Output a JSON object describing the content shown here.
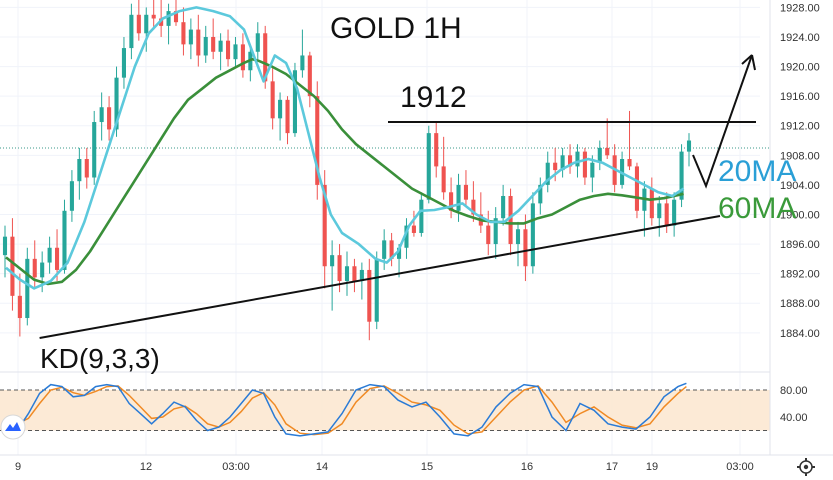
{
  "chart_data": {
    "type": "candlestick",
    "title": "GOLD 1H",
    "price_axis": {
      "ticks": [
        "1928.00",
        "1924.00",
        "1920.00",
        "1916.00",
        "1912.00",
        "1908.00",
        "1904.00",
        "1900.00",
        "1896.00",
        "1892.00",
        "1888.00",
        "1884.00"
      ],
      "ylim": [
        1881,
        1929
      ]
    },
    "time_axis": {
      "ticks": [
        "9",
        "12",
        "03:00",
        "14",
        "15",
        "16",
        "17",
        "19",
        "03:00"
      ]
    },
    "resistance": {
      "label": "1912",
      "value": 1912.5
    },
    "support": {
      "from": [
        1.2,
        1883.3
      ],
      "to": [
        25.5,
        1899.8
      ]
    },
    "ma_labels": [
      {
        "text": "20MA",
        "color": "#2a9fd6"
      },
      {
        "text": "60MA",
        "color": "#3a9a3a"
      }
    ],
    "ma20": [
      [
        0,
        1892.8
      ],
      [
        0.5,
        1891.2
      ],
      [
        1.0,
        1890.0
      ],
      [
        1.6,
        1891.0
      ],
      [
        2.2,
        1893.5
      ],
      [
        2.8,
        1899.0
      ],
      [
        3.4,
        1906.0
      ],
      [
        4.0,
        1913.0
      ],
      [
        4.6,
        1920.0
      ],
      [
        5.1,
        1924.5
      ],
      [
        5.6,
        1926.5
      ],
      [
        6.2,
        1927.5
      ],
      [
        6.8,
        1928.0
      ],
      [
        7.4,
        1927.5
      ],
      [
        8.0,
        1926.8
      ],
      [
        8.5,
        1925.0
      ],
      [
        8.8,
        1922.0
      ],
      [
        9.2,
        1918.0
      ],
      [
        9.6,
        1921.5
      ],
      [
        10.0,
        1920.5
      ],
      [
        10.4,
        1917.0
      ],
      [
        10.8,
        1911.0
      ],
      [
        11.2,
        1905.0
      ],
      [
        11.6,
        1900.0
      ],
      [
        12.0,
        1897.5
      ],
      [
        12.6,
        1896.0
      ],
      [
        13.2,
        1894.0
      ],
      [
        13.6,
        1893.5
      ],
      [
        14.0,
        1895.0
      ],
      [
        14.4,
        1898.5
      ],
      [
        14.8,
        1900.5
      ],
      [
        15.3,
        1900.6
      ],
      [
        15.8,
        1901.0
      ],
      [
        16.3,
        1901.5
      ],
      [
        16.8,
        1900.0
      ],
      [
        17.3,
        1899.0
      ],
      [
        17.8,
        1899.0
      ],
      [
        18.3,
        1900.5
      ],
      [
        18.8,
        1902.5
      ],
      [
        19.3,
        1904.5
      ],
      [
        19.8,
        1906.0
      ],
      [
        20.3,
        1907.0
      ],
      [
        20.8,
        1907.5
      ],
      [
        21.3,
        1907.0
      ],
      [
        21.8,
        1906.0
      ],
      [
        22.3,
        1905.0
      ],
      [
        22.8,
        1904.0
      ],
      [
        23.3,
        1903.0
      ],
      [
        23.8,
        1902.5
      ],
      [
        24.2,
        1903.5
      ]
    ],
    "ma60": [
      [
        0,
        1894.2
      ],
      [
        0.5,
        1892.7
      ],
      [
        1.0,
        1891.2
      ],
      [
        1.5,
        1890.6
      ],
      [
        2.0,
        1890.9
      ],
      [
        2.5,
        1892.5
      ],
      [
        3.0,
        1895.0
      ],
      [
        3.5,
        1898.0
      ],
      [
        4.0,
        1901.0
      ],
      [
        4.5,
        1904.0
      ],
      [
        5.0,
        1907.0
      ],
      [
        5.5,
        1910.0
      ],
      [
        6.0,
        1913.0
      ],
      [
        6.5,
        1915.5
      ],
      [
        7.0,
        1917.0
      ],
      [
        7.5,
        1918.5
      ],
      [
        8.0,
        1919.5
      ],
      [
        8.5,
        1920.5
      ],
      [
        8.8,
        1921.0
      ],
      [
        9.0,
        1920.8
      ],
      [
        9.5,
        1920.0
      ],
      [
        10.0,
        1919.0
      ],
      [
        10.5,
        1917.5
      ],
      [
        11.0,
        1916.0
      ],
      [
        11.5,
        1914.0
      ],
      [
        12.0,
        1911.5
      ],
      [
        12.5,
        1909.5
      ],
      [
        13.0,
        1908.0
      ],
      [
        13.5,
        1906.5
      ],
      [
        14.0,
        1905.0
      ],
      [
        14.5,
        1903.5
      ],
      [
        15.0,
        1902.5
      ],
      [
        15.5,
        1901.5
      ],
      [
        16.0,
        1900.5
      ],
      [
        16.5,
        1899.8
      ],
      [
        17.0,
        1899.2
      ],
      [
        17.5,
        1899.0
      ],
      [
        18.0,
        1898.8
      ],
      [
        18.5,
        1898.8
      ],
      [
        19.0,
        1899.5
      ],
      [
        19.5,
        1900.0
      ],
      [
        20.0,
        1901.0
      ],
      [
        20.5,
        1902.0
      ],
      [
        21.0,
        1902.5
      ],
      [
        21.5,
        1902.8
      ],
      [
        22.0,
        1902.6
      ],
      [
        22.5,
        1902.3
      ],
      [
        23.0,
        1902.0
      ],
      [
        23.5,
        1902.2
      ],
      [
        24.2,
        1902.8
      ]
    ],
    "kd_panel": {
      "label": "KD(9,3,3)",
      "ticks": [
        "80.00",
        "40.00"
      ],
      "levels": [
        80,
        20
      ],
      "k": [
        [
          0,
          35
        ],
        [
          0.4,
          20
        ],
        [
          0.8,
          45
        ],
        [
          1.2,
          75
        ],
        [
          1.6,
          88
        ],
        [
          2.0,
          85
        ],
        [
          2.4,
          70
        ],
        [
          2.8,
          72
        ],
        [
          3.2,
          85
        ],
        [
          3.6,
          88
        ],
        [
          4.0,
          85
        ],
        [
          4.4,
          60
        ],
        [
          4.8,
          45
        ],
        [
          5.2,
          30
        ],
        [
          5.6,
          45
        ],
        [
          6.0,
          62
        ],
        [
          6.4,
          55
        ],
        [
          6.8,
          35
        ],
        [
          7.2,
          20
        ],
        [
          7.6,
          25
        ],
        [
          8.0,
          40
        ],
        [
          8.4,
          60
        ],
        [
          8.8,
          80
        ],
        [
          9.2,
          75
        ],
        [
          9.6,
          40
        ],
        [
          10.0,
          15
        ],
        [
          10.5,
          12
        ],
        [
          11.0,
          15
        ],
        [
          11.5,
          18
        ],
        [
          12.0,
          45
        ],
        [
          12.5,
          80
        ],
        [
          13.0,
          88
        ],
        [
          13.5,
          85
        ],
        [
          14.0,
          65
        ],
        [
          14.5,
          55
        ],
        [
          15.0,
          62
        ],
        [
          15.5,
          40
        ],
        [
          16.0,
          15
        ],
        [
          16.5,
          12
        ],
        [
          17.0,
          25
        ],
        [
          17.5,
          55
        ],
        [
          18.0,
          75
        ],
        [
          18.5,
          88
        ],
        [
          19.0,
          85
        ],
        [
          19.5,
          40
        ],
        [
          20.0,
          20
        ],
        [
          20.5,
          60
        ],
        [
          21.0,
          50
        ],
        [
          21.5,
          30
        ],
        [
          22.0,
          25
        ],
        [
          22.5,
          22
        ],
        [
          23.0,
          40
        ],
        [
          23.5,
          70
        ],
        [
          24.0,
          85
        ],
        [
          24.3,
          90
        ]
      ],
      "d": [
        [
          0,
          40
        ],
        [
          0.4,
          30
        ],
        [
          0.8,
          38
        ],
        [
          1.2,
          60
        ],
        [
          1.6,
          80
        ],
        [
          2.0,
          84
        ],
        [
          2.4,
          76
        ],
        [
          2.8,
          72
        ],
        [
          3.2,
          78
        ],
        [
          3.6,
          85
        ],
        [
          4.0,
          86
        ],
        [
          4.4,
          72
        ],
        [
          4.8,
          55
        ],
        [
          5.2,
          38
        ],
        [
          5.6,
          40
        ],
        [
          6.0,
          52
        ],
        [
          6.4,
          56
        ],
        [
          6.8,
          45
        ],
        [
          7.2,
          30
        ],
        [
          7.6,
          25
        ],
        [
          8.0,
          32
        ],
        [
          8.4,
          48
        ],
        [
          8.8,
          68
        ],
        [
          9.2,
          76
        ],
        [
          9.6,
          58
        ],
        [
          10.0,
          30
        ],
        [
          10.5,
          16
        ],
        [
          11.0,
          14
        ],
        [
          11.5,
          16
        ],
        [
          12.0,
          30
        ],
        [
          12.5,
          62
        ],
        [
          13.0,
          82
        ],
        [
          13.5,
          86
        ],
        [
          14.0,
          75
        ],
        [
          14.5,
          62
        ],
        [
          15.0,
          58
        ],
        [
          15.5,
          50
        ],
        [
          16.0,
          28
        ],
        [
          16.5,
          15
        ],
        [
          17.0,
          18
        ],
        [
          17.5,
          40
        ],
        [
          18.0,
          62
        ],
        [
          18.5,
          80
        ],
        [
          19.0,
          86
        ],
        [
          19.5,
          62
        ],
        [
          20.0,
          32
        ],
        [
          20.5,
          45
        ],
        [
          21.0,
          55
        ],
        [
          21.5,
          40
        ],
        [
          22.0,
          28
        ],
        [
          22.5,
          24
        ],
        [
          23.0,
          30
        ],
        [
          23.5,
          55
        ],
        [
          24.0,
          75
        ],
        [
          24.3,
          85
        ]
      ]
    },
    "candles": [
      [
        1894.5,
        1898.5,
        1891.5,
        1897.0
      ],
      [
        1897.0,
        1899.5,
        1887.0,
        1889.0
      ],
      [
        1889.0,
        1892.0,
        1883.5,
        1886.0
      ],
      [
        1886.0,
        1895.5,
        1885.0,
        1894.0
      ],
      [
        1894.0,
        1896.5,
        1890.0,
        1891.5
      ],
      [
        1891.5,
        1895.0,
        1889.5,
        1893.5
      ],
      [
        1893.5,
        1897.0,
        1892.0,
        1895.5
      ],
      [
        1895.5,
        1898.0,
        1891.0,
        1892.5
      ],
      [
        1892.5,
        1902.0,
        1892.0,
        1900.5
      ],
      [
        1900.5,
        1906.0,
        1899.0,
        1904.5
      ],
      [
        1904.5,
        1909.0,
        1902.0,
        1907.5
      ],
      [
        1907.5,
        1909.0,
        1903.5,
        1905.0
      ],
      [
        1905.0,
        1914.0,
        1904.0,
        1912.5
      ],
      [
        1912.5,
        1916.5,
        1910.0,
        1914.5
      ],
      [
        1914.5,
        1916.0,
        1910.0,
        1911.5
      ],
      [
        1911.5,
        1920.0,
        1910.5,
        1918.5
      ],
      [
        1918.5,
        1924.0,
        1917.0,
        1922.5
      ],
      [
        1922.5,
        1928.5,
        1921.0,
        1927.0
      ],
      [
        1927.0,
        1929.0,
        1923.5,
        1924.5
      ],
      [
        1924.5,
        1928.0,
        1922.0,
        1927.0
      ],
      [
        1927.0,
        1929.0,
        1925.0,
        1926.5
      ],
      [
        1926.5,
        1929.0,
        1924.0,
        1925.5
      ],
      [
        1925.5,
        1928.5,
        1923.0,
        1927.5
      ],
      [
        1927.5,
        1929.0,
        1925.5,
        1926.0
      ],
      [
        1926.0,
        1928.0,
        1921.5,
        1923.0
      ],
      [
        1923.0,
        1926.5,
        1921.0,
        1925.0
      ],
      [
        1925.0,
        1927.0,
        1920.0,
        1921.5
      ],
      [
        1921.5,
        1925.5,
        1920.5,
        1924.0
      ],
      [
        1924.0,
        1926.5,
        1921.0,
        1922.0
      ],
      [
        1922.0,
        1924.5,
        1919.5,
        1923.5
      ],
      [
        1923.5,
        1925.0,
        1920.0,
        1921.0
      ],
      [
        1921.0,
        1924.0,
        1920.0,
        1923.0
      ],
      [
        1923.0,
        1924.5,
        1918.5,
        1919.5
      ],
      [
        1919.5,
        1923.0,
        1918.0,
        1922.0
      ],
      [
        1922.0,
        1926.0,
        1921.0,
        1924.5
      ],
      [
        1924.5,
        1925.5,
        1917.0,
        1918.0
      ],
      [
        1918.0,
        1920.0,
        1911.5,
        1913.0
      ],
      [
        1913.0,
        1916.5,
        1910.0,
        1915.5
      ],
      [
        1915.5,
        1916.0,
        1909.5,
        1911.0
      ],
      [
        1911.0,
        1920.5,
        1910.5,
        1919.5
      ],
      [
        1919.5,
        1925.0,
        1918.5,
        1921.5
      ],
      [
        1921.5,
        1922.0,
        1914.5,
        1916.0
      ],
      [
        1916.0,
        1918.0,
        1902.0,
        1904.0
      ],
      [
        1904.0,
        1906.0,
        1890.0,
        1893.0
      ],
      [
        1893.0,
        1896.5,
        1887.0,
        1894.5
      ],
      [
        1894.5,
        1896.0,
        1889.5,
        1891.0
      ],
      [
        1891.0,
        1895.0,
        1889.0,
        1893.0
      ],
      [
        1893.0,
        1894.0,
        1889.5,
        1891.0
      ],
      [
        1891.0,
        1893.5,
        1888.5,
        1892.5
      ],
      [
        1892.5,
        1894.0,
        1883.0,
        1885.5
      ],
      [
        1885.5,
        1895.0,
        1884.5,
        1894.0
      ],
      [
        1894.0,
        1898.0,
        1892.5,
        1896.5
      ],
      [
        1896.5,
        1897.5,
        1893.0,
        1894.0
      ],
      [
        1894.0,
        1896.0,
        1891.5,
        1895.5
      ],
      [
        1895.5,
        1899.5,
        1894.0,
        1898.5
      ],
      [
        1898.5,
        1900.5,
        1897.0,
        1897.5
      ],
      [
        1897.5,
        1903.0,
        1897.0,
        1902.0
      ],
      [
        1902.0,
        1912.0,
        1901.5,
        1911.0
      ],
      [
        1911.0,
        1912.5,
        1905.0,
        1906.5
      ],
      [
        1906.5,
        1910.5,
        1902.0,
        1903.0
      ],
      [
        1903.0,
        1905.0,
        1899.5,
        1900.5
      ],
      [
        1900.5,
        1905.5,
        1899.0,
        1904.0
      ],
      [
        1904.0,
        1906.0,
        1901.0,
        1902.0
      ],
      [
        1902.0,
        1904.5,
        1899.0,
        1900.0
      ],
      [
        1900.0,
        1903.0,
        1897.5,
        1898.5
      ],
      [
        1898.5,
        1900.5,
        1894.5,
        1896.0
      ],
      [
        1896.0,
        1901.0,
        1894.0,
        1899.5
      ],
      [
        1899.5,
        1904.0,
        1898.5,
        1902.5
      ],
      [
        1902.5,
        1903.5,
        1894.5,
        1896.0
      ],
      [
        1896.0,
        1899.0,
        1893.0,
        1898.0
      ],
      [
        1898.0,
        1900.0,
        1891.0,
        1893.0
      ],
      [
        1893.0,
        1903.0,
        1892.0,
        1901.5
      ],
      [
        1901.5,
        1905.0,
        1900.0,
        1904.0
      ],
      [
        1904.0,
        1908.5,
        1903.0,
        1907.0
      ],
      [
        1907.0,
        1909.0,
        1904.5,
        1906.0
      ],
      [
        1906.0,
        1909.0,
        1905.0,
        1908.0
      ],
      [
        1908.0,
        1909.5,
        1905.5,
        1906.5
      ],
      [
        1906.5,
        1909.5,
        1905.0,
        1908.5
      ],
      [
        1908.5,
        1909.0,
        1904.0,
        1905.0
      ],
      [
        1905.0,
        1908.0,
        1903.0,
        1907.0
      ],
      [
        1907.0,
        1910.0,
        1906.0,
        1909.0
      ],
      [
        1909.0,
        1913.0,
        1907.5,
        1908.0
      ],
      [
        1908.0,
        1909.5,
        1903.0,
        1904.0
      ],
      [
        1904.0,
        1908.5,
        1903.5,
        1907.5
      ],
      [
        1907.5,
        1914.0,
        1906.0,
        1906.5
      ],
      [
        1906.5,
        1907.0,
        1899.5,
        1900.5
      ],
      [
        1900.5,
        1904.5,
        1897.0,
        1903.5
      ],
      [
        1903.5,
        1905.0,
        1898.5,
        1899.5
      ],
      [
        1899.5,
        1902.5,
        1897.0,
        1901.5
      ],
      [
        1901.5,
        1903.0,
        1897.5,
        1898.5
      ],
      [
        1898.5,
        1903.0,
        1897.0,
        1902.0
      ],
      [
        1902.0,
        1909.5,
        1901.0,
        1908.5
      ],
      [
        1908.5,
        1911.0,
        1906.5,
        1910.0
      ]
    ]
  }
}
